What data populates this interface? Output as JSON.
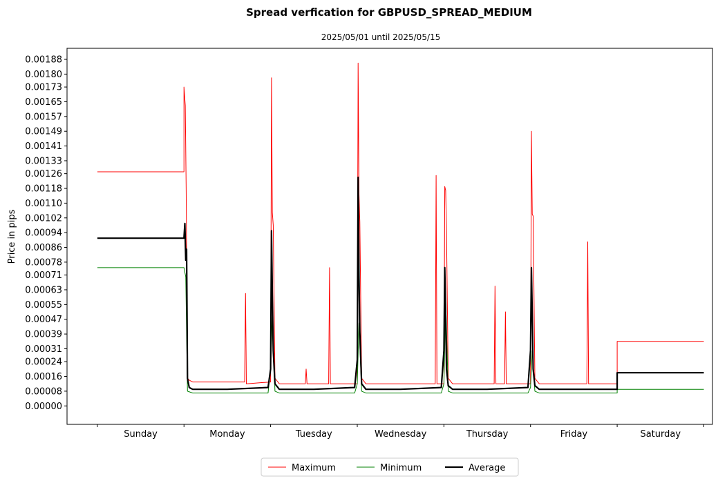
{
  "chart_data": {
    "type": "line",
    "title": "Spread verfication for GBPUSD_SPREAD_MEDIUM",
    "subtitle": "2025/05/01 until 2025/05/15",
    "xlabel": "",
    "ylabel": "Price in pips",
    "ylim": [
      -0.0001,
      0.00194
    ],
    "xlim": [
      -0.35,
      7.1
    ],
    "grid": false,
    "legend_position": "bottom-center",
    "categories": [
      "Sunday",
      "Monday",
      "Tuesday",
      "Wednesday",
      "Thursday",
      "Friday",
      "Saturday"
    ],
    "y_ticks": [
      "0.00000",
      "0.00008",
      "0.00016",
      "0.00024",
      "0.00031",
      "0.00039",
      "0.00047",
      "0.00055",
      "0.00063",
      "0.00071",
      "0.00078",
      "0.00086",
      "0.00094",
      "0.00102",
      "0.00110",
      "0.00118",
      "0.00126",
      "0.00133",
      "0.00141",
      "0.00149",
      "0.00157",
      "0.00165",
      "0.00173",
      "0.00180",
      "0.00188"
    ],
    "series": [
      {
        "name": "Maximum",
        "color": "#ff0000",
        "x": [
          0,
          1.0,
          1.0,
          1.015,
          1.025,
          1.04,
          1.06,
          1.1,
          1.7,
          1.71,
          1.72,
          2.0,
          2.01,
          2.02,
          2.03,
          2.05,
          2.1,
          2.4,
          2.41,
          2.42,
          2.67,
          2.68,
          2.69,
          3.0,
          3.01,
          3.02,
          3.03,
          3.05,
          3.1,
          3.9,
          3.91,
          3.92,
          4.0,
          4.01,
          4.02,
          4.03,
          4.05,
          4.1,
          4.58,
          4.59,
          4.6,
          4.7,
          4.71,
          4.72,
          5.0,
          5.01,
          5.02,
          5.03,
          5.05,
          5.1,
          5.65,
          5.66,
          5.67,
          6.0,
          6.0,
          7.0
        ],
        "y": [
          0.00127,
          0.00127,
          0.00173,
          0.00163,
          0.00117,
          0.00015,
          0.00014,
          0.00013,
          0.00013,
          0.00061,
          0.00012,
          0.00013,
          0.00178,
          0.00105,
          0.00098,
          0.00015,
          0.00012,
          0.00012,
          0.0002,
          0.00012,
          0.00012,
          0.00075,
          0.00012,
          0.00012,
          0.00186,
          0.00115,
          0.001,
          0.00015,
          0.00012,
          0.00012,
          0.00125,
          0.00012,
          0.00012,
          0.00119,
          0.00117,
          0.00095,
          0.00015,
          0.00012,
          0.00012,
          0.00065,
          0.00012,
          0.00012,
          0.00051,
          0.00012,
          0.00012,
          0.00149,
          0.00104,
          0.00103,
          0.00015,
          0.00012,
          0.00012,
          0.00089,
          0.00012,
          0.00012,
          0.00035,
          0.00035
        ]
      },
      {
        "name": "Minimum",
        "color": "#008000",
        "x": [
          0,
          1.0,
          1.02,
          1.04,
          1.1,
          1.97,
          2.0,
          2.02,
          2.05,
          2.1,
          2.97,
          3.0,
          3.02,
          3.05,
          3.1,
          3.97,
          4.0,
          4.02,
          4.05,
          4.1,
          4.97,
          5.0,
          5.02,
          5.05,
          5.1,
          6.0,
          6.0,
          7.0
        ],
        "y": [
          0.00075,
          0.00075,
          0.0007,
          8e-05,
          7e-05,
          7e-05,
          0.0002,
          0.0005,
          8e-05,
          7e-05,
          7e-05,
          0.00012,
          0.00045,
          8e-05,
          7e-05,
          7e-05,
          0.00012,
          0.00058,
          8e-05,
          7e-05,
          7e-05,
          0.0001,
          0.0003,
          8e-05,
          7e-05,
          7e-05,
          9e-05,
          9e-05
        ]
      },
      {
        "name": "Average",
        "color": "#000000",
        "x": [
          0,
          1.0,
          1.01,
          1.02,
          1.03,
          1.04,
          1.06,
          1.1,
          1.5,
          1.97,
          2.0,
          2.01,
          2.02,
          2.03,
          2.05,
          2.1,
          2.5,
          2.97,
          3.0,
          3.01,
          3.02,
          3.03,
          3.05,
          3.1,
          3.5,
          3.97,
          4.0,
          4.01,
          4.02,
          4.03,
          4.05,
          4.1,
          4.5,
          4.97,
          5.0,
          5.01,
          5.02,
          5.03,
          5.05,
          5.1,
          5.5,
          6.0,
          6.0,
          7.0
        ],
        "y": [
          0.00091,
          0.00091,
          0.00099,
          0.00079,
          0.00085,
          0.00015,
          0.0001,
          9e-05,
          9e-05,
          0.0001,
          0.0002,
          0.00095,
          0.0006,
          0.0003,
          0.00012,
          9e-05,
          9e-05,
          0.0001,
          0.00025,
          0.00124,
          0.0007,
          0.0004,
          0.00012,
          9e-05,
          9e-05,
          0.0001,
          0.0003,
          0.00075,
          0.0005,
          0.0002,
          0.00011,
          9e-05,
          9e-05,
          0.0001,
          0.0003,
          0.00075,
          0.0005,
          0.0002,
          0.00011,
          9e-05,
          9e-05,
          9e-05,
          0.00018,
          0.00018
        ]
      }
    ]
  }
}
